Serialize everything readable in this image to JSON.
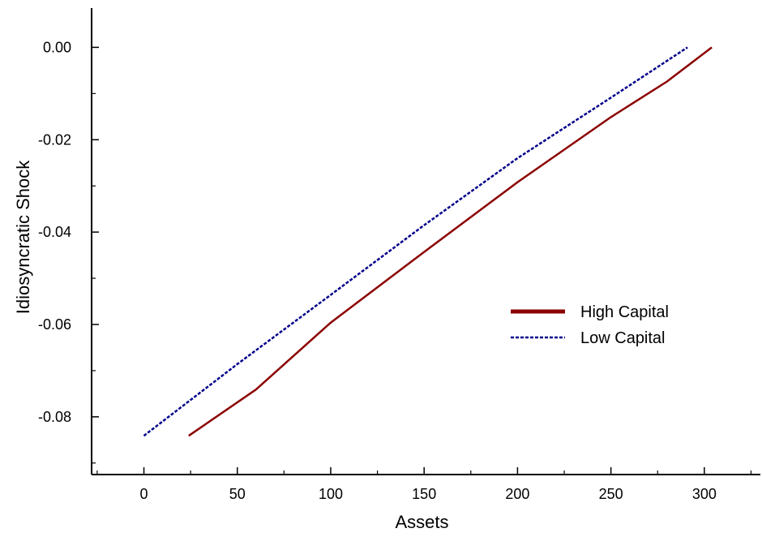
{
  "chart_data": {
    "type": "line",
    "title": "",
    "xlabel": "Assets",
    "ylabel": "Idiosyncratic Shock",
    "xlim": [
      -28,
      330
    ],
    "ylim": [
      -0.0925,
      0.0085
    ],
    "xticks": [
      0,
      50,
      100,
      150,
      200,
      250,
      300
    ],
    "xtick_labels": [
      "0",
      "50",
      "100",
      "150",
      "200",
      "250",
      "300"
    ],
    "yticks": [
      0.0,
      -0.02,
      -0.04,
      -0.06,
      -0.08
    ],
    "ytick_labels": [
      "0.00",
      "-0.02",
      "-0.04",
      "-0.06",
      "-0.08"
    ],
    "grid": false,
    "legend_position": "center-right",
    "series": [
      {
        "name": "High Capital",
        "color": "#8b0000",
        "style": "solid",
        "x": [
          24,
          60,
          100,
          150,
          200,
          250,
          280,
          304
        ],
        "y": [
          -0.0841,
          -0.0741,
          -0.0596,
          -0.0443,
          -0.0292,
          -0.0151,
          -0.0074,
          0.0
        ]
      },
      {
        "name": "Low Capital",
        "color": "#00008b",
        "style": "dashed",
        "x": [
          0,
          50,
          100,
          150,
          200,
          250,
          291
        ],
        "y": [
          -0.0841,
          -0.0686,
          -0.0536,
          -0.0385,
          -0.024,
          -0.0109,
          0.0
        ]
      }
    ]
  }
}
